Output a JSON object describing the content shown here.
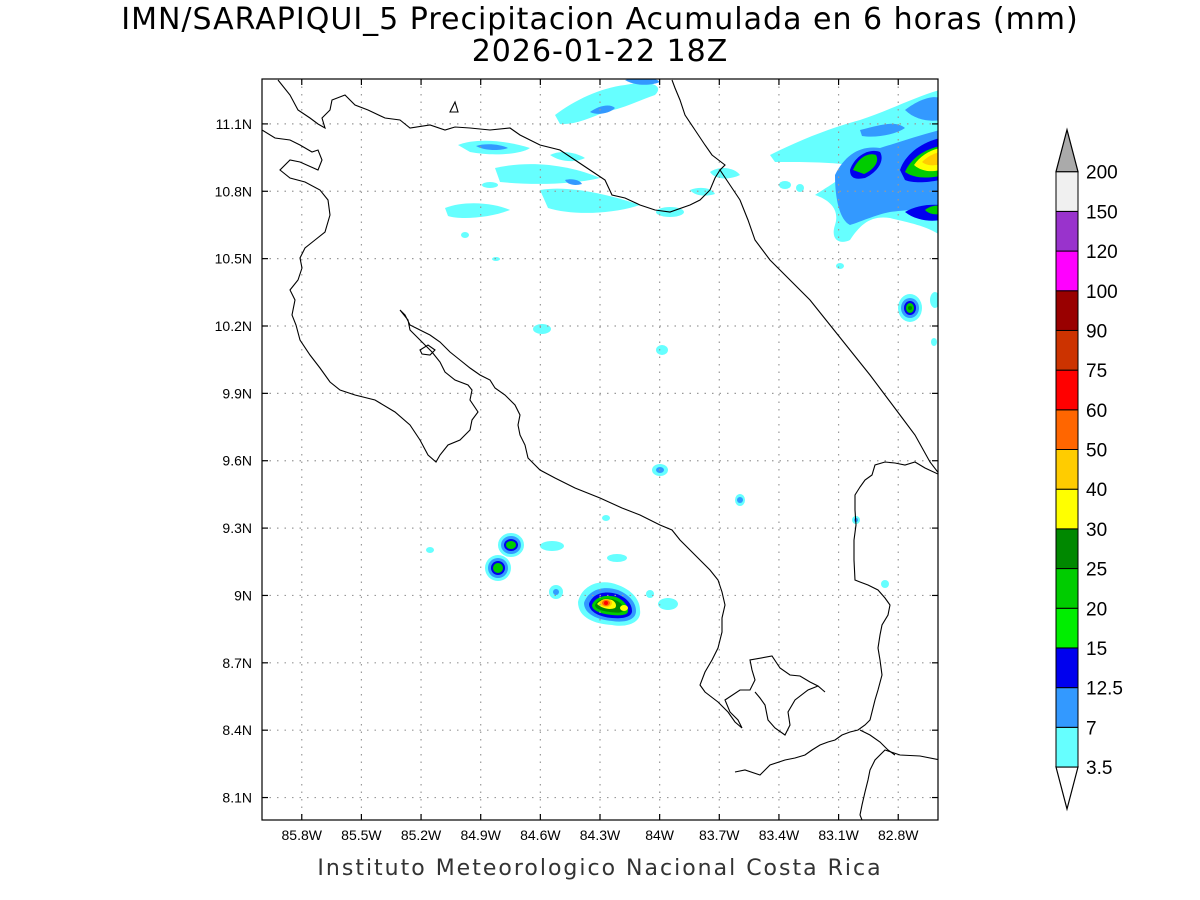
{
  "title": {
    "line1": "IMN/SARAPIQUI_5 Precipitacion Acumulada en 6 horas (mm)",
    "line2": "2026-01-22 18Z"
  },
  "footer": "Instituto Meteorologico Nacional Costa Rica",
  "map": {
    "lon_range": [
      -86.0,
      -82.6
    ],
    "lat_range": [
      8.0,
      11.3
    ],
    "x_ticks": [
      "85.8W",
      "85.5W",
      "85.2W",
      "84.9W",
      "84.6W",
      "84.3W",
      "84W",
      "83.7W",
      "83.4W",
      "83.1W",
      "82.8W"
    ],
    "x_tick_values": [
      -85.8,
      -85.5,
      -85.2,
      -84.9,
      -84.6,
      -84.3,
      -84.0,
      -83.7,
      -83.4,
      -83.1,
      -82.8
    ],
    "y_ticks": [
      "11.1N",
      "10.8N",
      "10.5N",
      "10.2N",
      "9.9N",
      "9.6N",
      "9.3N",
      "9N",
      "8.7N",
      "8.4N",
      "8.1N"
    ],
    "y_tick_values": [
      11.1,
      10.8,
      10.5,
      10.2,
      9.9,
      9.6,
      9.3,
      9.0,
      8.7,
      8.4,
      8.1
    ],
    "grid": "dotted"
  },
  "colorbar": {
    "labels": [
      "3.5",
      "7",
      "12.5",
      "15",
      "20",
      "25",
      "30",
      "40",
      "50",
      "60",
      "75",
      "90",
      "100",
      "120",
      "150",
      "200"
    ],
    "colors": [
      "#66ffff",
      "#3399ff",
      "#0000ee",
      "#00ee00",
      "#00cc00",
      "#008800",
      "#ffff00",
      "#ffcc00",
      "#ff6600",
      "#ff0000",
      "#cc3300",
      "#990000",
      "#ff00ff",
      "#9933cc",
      "#f0f0f0",
      "#aaaaaa"
    ]
  },
  "precip_cells": [
    {
      "lon": -82.68,
      "lat": 10.98,
      "peak": "30"
    },
    {
      "lon": -82.85,
      "lat": 10.99,
      "peak": "25"
    },
    {
      "lon": -82.75,
      "lat": 10.28,
      "peak": "20"
    },
    {
      "lon": -84.19,
      "lat": 8.96,
      "peak": "60"
    },
    {
      "lon": -84.72,
      "lat": 9.22,
      "peak": "20"
    },
    {
      "lon": -84.77,
      "lat": 9.12,
      "peak": "20"
    }
  ]
}
